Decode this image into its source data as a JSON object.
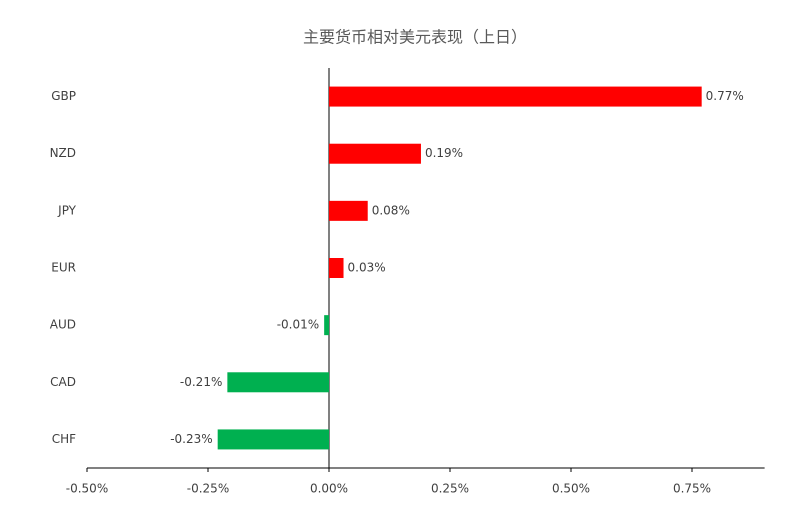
{
  "chart_data": {
    "type": "hbar",
    "title": "主要货币相对美元表现（上日）",
    "categories": [
      "GBP",
      "NZD",
      "JPY",
      "EUR",
      "AUD",
      "CAD",
      "CHF"
    ],
    "values": [
      0.77,
      0.19,
      0.08,
      0.03,
      -0.01,
      -0.21,
      -0.23
    ],
    "value_labels": [
      "0.77%",
      "0.19%",
      "0.08%",
      "0.03%",
      "-0.01%",
      "-0.21%",
      "-0.23%"
    ],
    "colors": [
      "#ff0000",
      "#ff0000",
      "#ff0000",
      "#ff0000",
      "#00b050",
      "#00b050",
      "#00b050"
    ],
    "xlim": [
      -0.5,
      0.9
    ],
    "xticks": [
      {
        "value": -0.5,
        "label": "-0.50%"
      },
      {
        "value": -0.25,
        "label": "-0.25%"
      },
      {
        "value": 0,
        "label": "0.00%"
      },
      {
        "value": 0.25,
        "label": "0.25%"
      },
      {
        "value": 0.5,
        "label": "0.50%"
      },
      {
        "value": 0.75,
        "label": "0.75%"
      }
    ],
    "grid": false
  }
}
